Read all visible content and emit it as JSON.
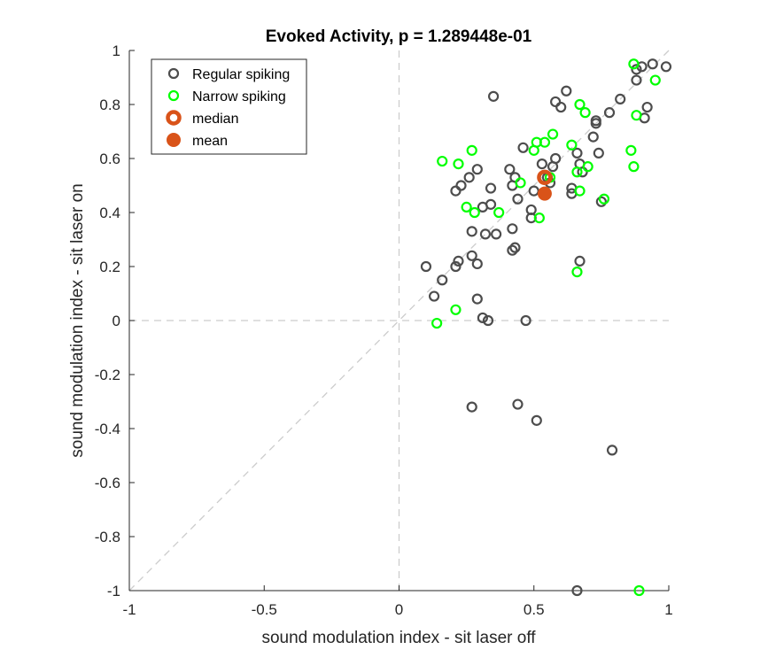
{
  "chart_data": {
    "type": "scatter",
    "title": "Evoked Activity, p = 1.289448e-01",
    "xlabel": "sound modulation index - sit laser off",
    "ylabel": "sound modulation index - sit laser on",
    "xlim": [
      -1,
      1
    ],
    "ylim": [
      -1,
      1
    ],
    "xticks": [
      -1,
      -0.5,
      0,
      0.5,
      1
    ],
    "xtick_labels": [
      "-1",
      "-0.5",
      "0",
      "0.5",
      "1"
    ],
    "yticks": [
      1,
      0.8,
      0.6,
      0.4,
      0.2,
      0,
      -0.2,
      -0.4,
      -0.6,
      -0.8,
      -1
    ],
    "ytick_labels": [
      "1",
      "0.8",
      "0.6",
      "0.4",
      "0.2",
      "0",
      "-0.2",
      "-0.4",
      "-0.6",
      "-0.8",
      "-1"
    ],
    "grid": false,
    "reference_lines": [
      "x=0 dashed",
      "y=0 dashed",
      "y=x dashed"
    ],
    "legend_position": "top-left",
    "series": [
      {
        "name": "Regular spiking",
        "marker": "open-circle",
        "color": "#4d4d4d",
        "points": [
          [
            0.99,
            0.94
          ],
          [
            0.94,
            0.95
          ],
          [
            0.9,
            0.94
          ],
          [
            0.88,
            0.93
          ],
          [
            0.88,
            0.89
          ],
          [
            0.82,
            0.82
          ],
          [
            0.92,
            0.79
          ],
          [
            0.91,
            0.75
          ],
          [
            0.78,
            0.77
          ],
          [
            0.73,
            0.74
          ],
          [
            0.73,
            0.73
          ],
          [
            0.72,
            0.68
          ],
          [
            0.74,
            0.62
          ],
          [
            0.75,
            0.44
          ],
          [
            0.62,
            0.85
          ],
          [
            0.58,
            0.81
          ],
          [
            0.6,
            0.79
          ],
          [
            0.35,
            0.83
          ],
          [
            0.67,
            0.58
          ],
          [
            0.68,
            0.55
          ],
          [
            0.66,
            0.62
          ],
          [
            0.58,
            0.6
          ],
          [
            0.57,
            0.57
          ],
          [
            0.53,
            0.58
          ],
          [
            0.55,
            0.53
          ],
          [
            0.56,
            0.51
          ],
          [
            0.64,
            0.49
          ],
          [
            0.64,
            0.47
          ],
          [
            0.46,
            0.64
          ],
          [
            0.41,
            0.56
          ],
          [
            0.43,
            0.53
          ],
          [
            0.42,
            0.5
          ],
          [
            0.44,
            0.45
          ],
          [
            0.5,
            0.48
          ],
          [
            0.49,
            0.41
          ],
          [
            0.49,
            0.38
          ],
          [
            0.29,
            0.56
          ],
          [
            0.26,
            0.53
          ],
          [
            0.34,
            0.49
          ],
          [
            0.31,
            0.42
          ],
          [
            0.34,
            0.43
          ],
          [
            0.21,
            0.48
          ],
          [
            0.23,
            0.5
          ],
          [
            0.27,
            0.33
          ],
          [
            0.32,
            0.32
          ],
          [
            0.36,
            0.32
          ],
          [
            0.42,
            0.34
          ],
          [
            0.43,
            0.27
          ],
          [
            0.42,
            0.26
          ],
          [
            0.27,
            0.24
          ],
          [
            0.21,
            0.2
          ],
          [
            0.22,
            0.22
          ],
          [
            0.29,
            0.21
          ],
          [
            0.1,
            0.2
          ],
          [
            0.16,
            0.15
          ],
          [
            0.13,
            0.09
          ],
          [
            0.29,
            0.08
          ],
          [
            0.31,
            0.01
          ],
          [
            0.33,
            0.0
          ],
          [
            0.47,
            0.0
          ],
          [
            0.67,
            0.22
          ],
          [
            0.27,
            -0.32
          ],
          [
            0.44,
            -0.31
          ],
          [
            0.51,
            -0.37
          ],
          [
            0.79,
            -0.48
          ],
          [
            0.66,
            -1.0
          ]
        ]
      },
      {
        "name": "Narrow spiking",
        "marker": "open-circle",
        "color": "#00ff00",
        "points": [
          [
            0.87,
            0.95
          ],
          [
            0.95,
            0.89
          ],
          [
            0.88,
            0.76
          ],
          [
            0.86,
            0.63
          ],
          [
            0.87,
            0.57
          ],
          [
            0.67,
            0.8
          ],
          [
            0.69,
            0.77
          ],
          [
            0.57,
            0.69
          ],
          [
            0.64,
            0.65
          ],
          [
            0.54,
            0.66
          ],
          [
            0.51,
            0.66
          ],
          [
            0.5,
            0.63
          ],
          [
            0.56,
            0.53
          ],
          [
            0.66,
            0.55
          ],
          [
            0.7,
            0.57
          ],
          [
            0.67,
            0.48
          ],
          [
            0.76,
            0.45
          ],
          [
            0.45,
            0.51
          ],
          [
            0.52,
            0.38
          ],
          [
            0.37,
            0.4
          ],
          [
            0.27,
            0.63
          ],
          [
            0.16,
            0.59
          ],
          [
            0.22,
            0.58
          ],
          [
            0.25,
            0.42
          ],
          [
            0.28,
            0.4
          ],
          [
            0.66,
            0.18
          ],
          [
            0.21,
            0.04
          ],
          [
            0.14,
            -0.01
          ],
          [
            0.89,
            -1.0
          ]
        ]
      },
      {
        "name": "median",
        "marker": "thick-open-circle",
        "color": "#d95319",
        "points": [
          [
            0.54,
            0.53
          ]
        ]
      },
      {
        "name": "mean",
        "marker": "filled-circle",
        "color": "#d95319",
        "points": [
          [
            0.54,
            0.47
          ]
        ]
      }
    ]
  }
}
